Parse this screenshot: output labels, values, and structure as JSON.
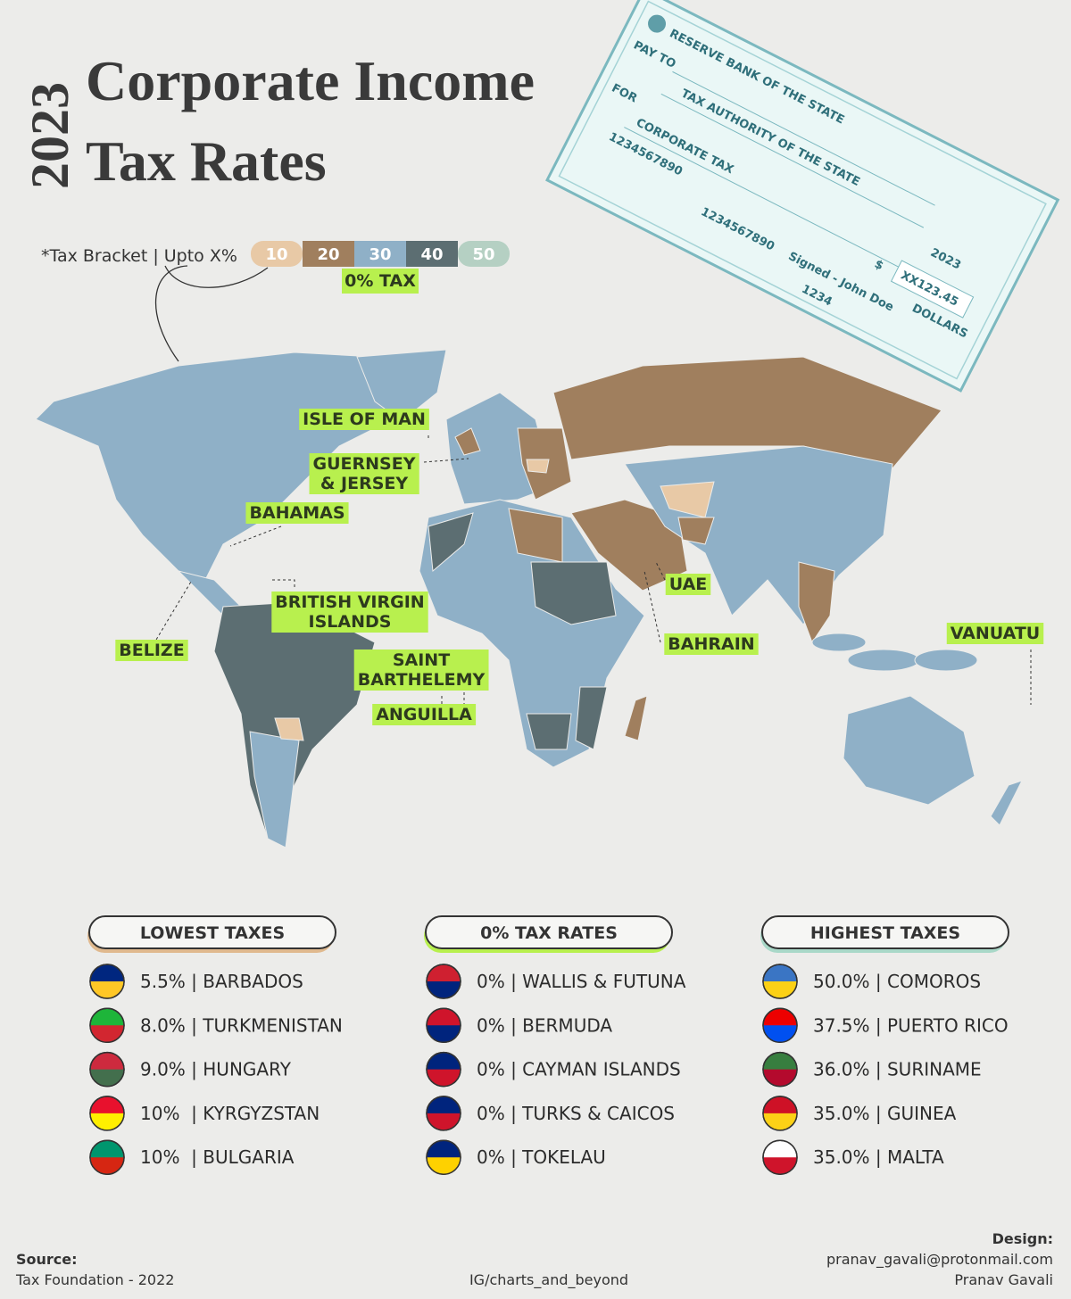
{
  "header": {
    "year": "2023",
    "title_lines": [
      "Corporate Income",
      "Tax Rates"
    ]
  },
  "check": {
    "bank": "RESERVE BANK OF THE STATE",
    "pay_to_label": "PAY TO",
    "payee": "TAX AUTHORITY OF THE STATE",
    "for_label": "FOR",
    "memo": "CORPORATE TAX",
    "year": "2023",
    "currency": "$",
    "amount": "XX123.45",
    "dollars": "DOLLARS",
    "signed": "Signed - John Doe",
    "numbers": [
      "1234567890",
      "1234567890",
      "1234"
    ]
  },
  "legend": {
    "note": "*Tax Bracket | Upto X%",
    "brackets": [
      10,
      20,
      30,
      40,
      50
    ],
    "colors": [
      "#e8c9a6",
      "#a07f5e",
      "#8fb0c7",
      "#5c6e72",
      "#b5d0c3"
    ],
    "zero": "0% TAX"
  },
  "map_labels": [
    "ISLE OF MAN",
    "GUERNSEY & JERSEY",
    "BAHAMAS",
    "BRITISH VIRGIN ISLANDS",
    "BELIZE",
    "SAINT BARTHELEMY",
    "ANGUILLA",
    "UAE",
    "BAHRAIN",
    "VANUATU"
  ],
  "lists": [
    {
      "title": "LOWEST TAXES",
      "items": [
        "5.5% | BARBADOS",
        "8.0% | TURKMENISTAN",
        "9.0% | HUNGARY",
        "10%  | KYRGYZSTAN",
        "10%  | BULGARIA"
      ]
    },
    {
      "title": "0% TAX RATES",
      "items": [
        "0% | WALLIS & FUTUNA",
        "0% | BERMUDA",
        "0% | CAYMAN ISLANDS",
        "0% | TURKS & CAICOS",
        "0% | TOKELAU"
      ]
    },
    {
      "title": "HIGHEST TAXES",
      "items": [
        "50.0% | COMOROS",
        "37.5% | PUERTO RICO",
        "36.0% | SURINAME",
        "35.0% | GUINEA",
        "35.0% | MALTA"
      ]
    }
  ],
  "footer": {
    "source_label": "Source:",
    "source": "Tax Foundation - 2022",
    "handle": "IG/charts_and_beyond",
    "design_label": "Design:",
    "email": "pranav_gavali@protonmail.com",
    "designer": "Pranav Gavali"
  }
}
